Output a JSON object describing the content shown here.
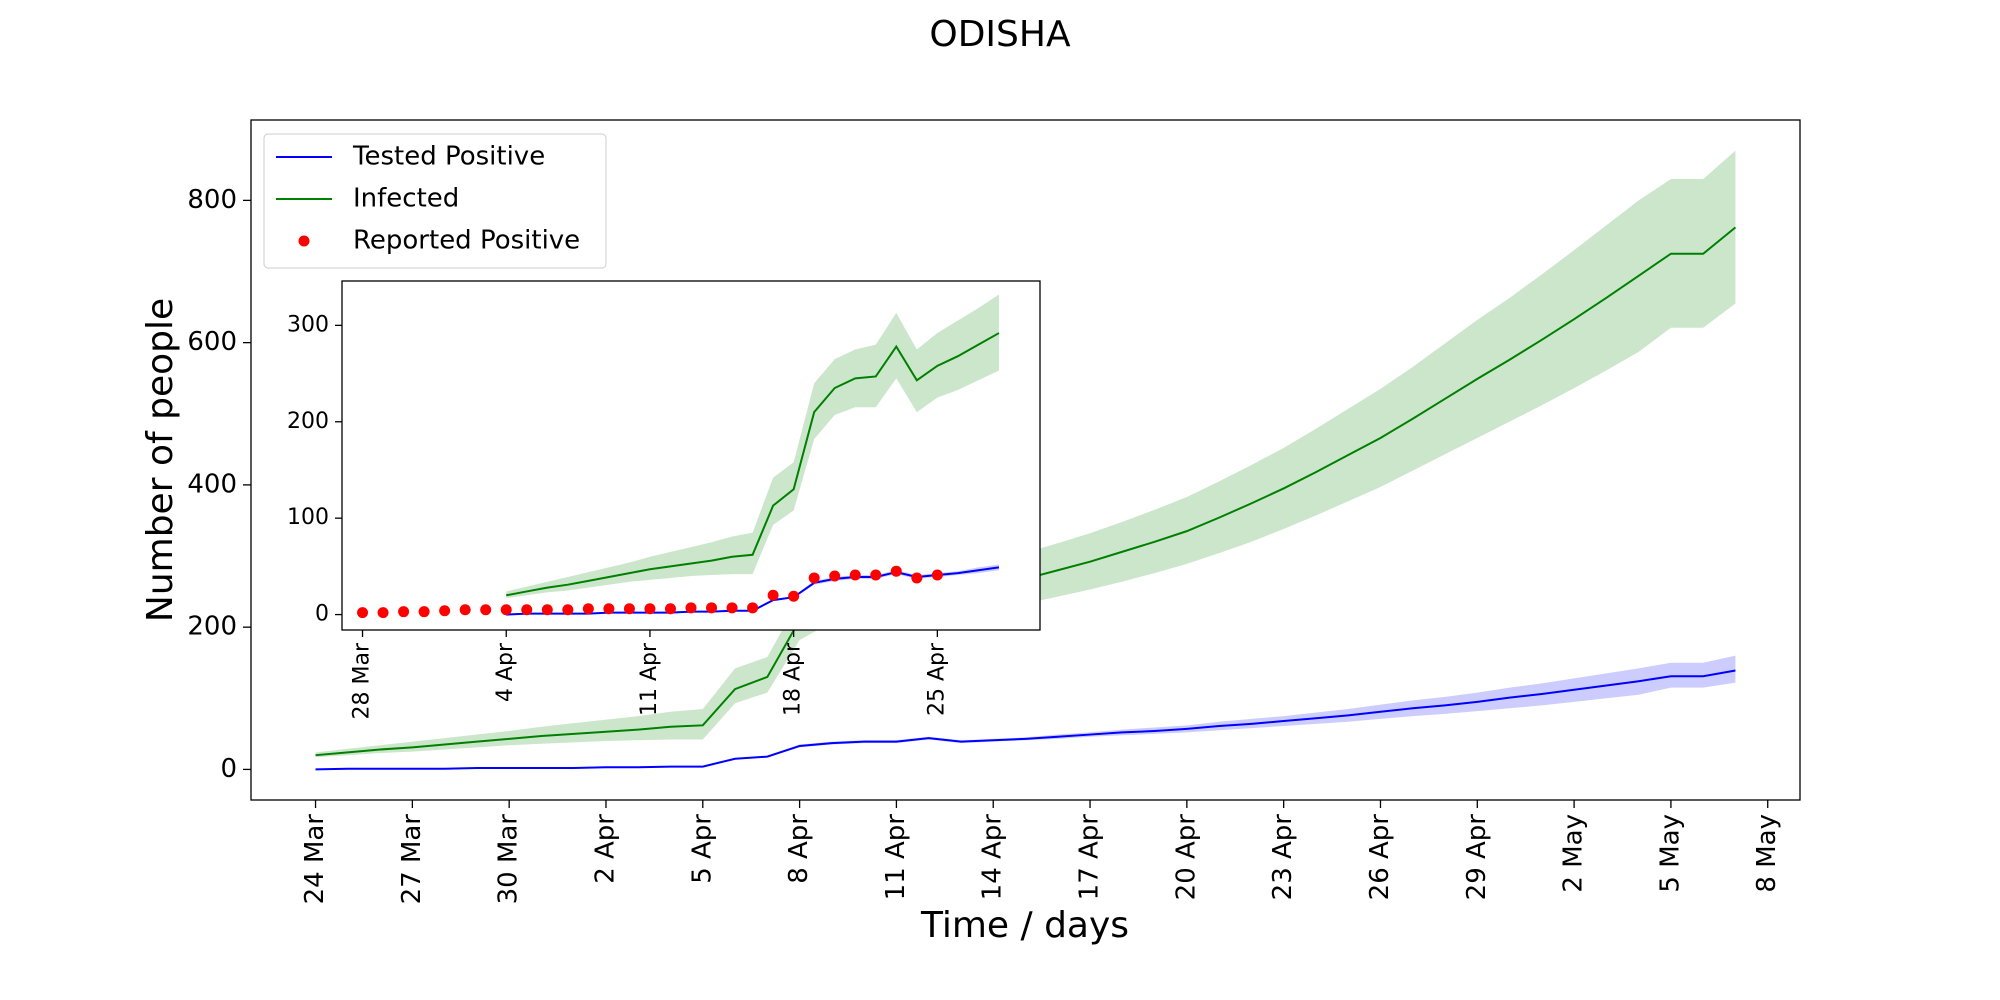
{
  "chart_data": [
    {
      "type": "line",
      "title": "ODISHA",
      "xlabel": "Time / days",
      "ylabel": "Number of people",
      "x": [
        "24 Mar",
        "25 Mar",
        "26 Mar",
        "27 Mar",
        "28 Mar",
        "29 Mar",
        "30 Mar",
        "31 Mar",
        "1 Apr",
        "2 Apr",
        "3 Apr",
        "4 Apr",
        "5 Apr",
        "6 Apr",
        "7 Apr",
        "8 Apr",
        "9 Apr",
        "10 Apr",
        "11 Apr",
        "12 Apr",
        "13 Apr",
        "14 Apr",
        "15 Apr",
        "16 Apr",
        "17 Apr",
        "18 Apr",
        "19 Apr",
        "20 Apr",
        "21 Apr",
        "22 Apr",
        "23 Apr",
        "24 Apr",
        "25 Apr",
        "26 Apr",
        "27 Apr",
        "28 Apr",
        "29 Apr",
        "30 Apr",
        "1 May",
        "2 May",
        "3 May",
        "4 May",
        "5 May",
        "6 May",
        "7 May"
      ],
      "xlim": [
        "22 Mar",
        "9 May"
      ],
      "xticks": [
        "24 Mar",
        "27 Mar",
        "30 Mar",
        "2 Apr",
        "5 Apr",
        "8 Apr",
        "11 Apr",
        "14 Apr",
        "17 Apr",
        "20 Apr",
        "23 Apr",
        "26 Apr",
        "29 Apr",
        "2 May",
        "5 May",
        "8 May"
      ],
      "ylim": [
        -43,
        913
      ],
      "yticks": [
        0,
        200,
        400,
        600,
        800
      ],
      "grid": false,
      "legend": {
        "loc": "upper left",
        "entries": [
          {
            "name": "Tested Positive",
            "color": "#0000ff",
            "marker": "line"
          },
          {
            "name": "Infected",
            "color": "#008000",
            "marker": "line"
          },
          {
            "name": "Reported Positive",
            "color": "#ff0000",
            "marker": "dot"
          }
        ]
      },
      "series": [
        {
          "color": "#0000ff",
          "band_color": "rgba(0,0,255,0.2)",
          "values": [
            0,
            1,
            1,
            1,
            1,
            2,
            2,
            2,
            2,
            3,
            3,
            4,
            4,
            15,
            18,
            33,
            37,
            39,
            39,
            44,
            39,
            41,
            43,
            46,
            49,
            52,
            54,
            57,
            61,
            64,
            68,
            72,
            76,
            81,
            86,
            90,
            95,
            101,
            106,
            112,
            118,
            124,
            131,
            131,
            139
          ],
          "lower": [
            0,
            1,
            1,
            1,
            1,
            2,
            2,
            2,
            2,
            3,
            3,
            4,
            4,
            14,
            17,
            31,
            35,
            37,
            37,
            42,
            37,
            39,
            41,
            43,
            46,
            48,
            50,
            52,
            55,
            58,
            61,
            64,
            67,
            71,
            75,
            78,
            82,
            86,
            90,
            95,
            100,
            105,
            115,
            115,
            122
          ],
          "upper": [
            0,
            1,
            1,
            1,
            1,
            2,
            2,
            2,
            2,
            3,
            3,
            4,
            4,
            16,
            19,
            35,
            39,
            41,
            41,
            46,
            41,
            43,
            45,
            49,
            52,
            56,
            59,
            62,
            67,
            71,
            75,
            80,
            85,
            91,
            97,
            102,
            108,
            115,
            121,
            128,
            135,
            142,
            150,
            150,
            160
          ]
        },
        {
          "color": "#008000",
          "band_color": "rgba(0,128,0,0.2)",
          "values": [
            20,
            24,
            28,
            31,
            35,
            39,
            43,
            47,
            50,
            53,
            56,
            60,
            62,
            113,
            130,
            210,
            235,
            245,
            247,
            278,
            243,
            258,
            268,
            280,
            292,
            306,
            320,
            335,
            354,
            374,
            395,
            418,
            442,
            466,
            493,
            521,
            549,
            576,
            604,
            633,
            663,
            694,
            725,
            725,
            762
          ],
          "lower": [
            17,
            20,
            23,
            25,
            28,
            31,
            34,
            36,
            38,
            40,
            41,
            42,
            42,
            93,
            108,
            182,
            207,
            215,
            215,
            245,
            210,
            225,
            233,
            243,
            253,
            264,
            276,
            289,
            304,
            320,
            338,
            357,
            377,
            397,
            420,
            443,
            466,
            489,
            512,
            536,
            561,
            587,
            621,
            621,
            655
          ],
          "upper": [
            24,
            29,
            34,
            39,
            44,
            49,
            54,
            60,
            65,
            70,
            75,
            81,
            85,
            142,
            158,
            240,
            265,
            275,
            280,
            313,
            275,
            292,
            305,
            318,
            332,
            348,
            365,
            383,
            405,
            428,
            452,
            479,
            507,
            535,
            566,
            599,
            632,
            663,
            696,
            730,
            765,
            800,
            830,
            830,
            870
          ]
        }
      ]
    },
    {
      "type": "line",
      "x": [
        "4 Apr",
        "5 Apr",
        "6 Apr",
        "7 Apr",
        "8 Apr",
        "9 Apr",
        "10 Apr",
        "11 Apr",
        "12 Apr",
        "13 Apr",
        "14 Apr",
        "15 Apr",
        "16 Apr",
        "17 Apr",
        "18 Apr",
        "19 Apr",
        "20 Apr",
        "21 Apr",
        "22 Apr",
        "23 Apr",
        "24 Apr",
        "25 Apr",
        "26 Apr",
        "27 Apr",
        "28 Apr"
      ],
      "xlim": [
        "27 Mar",
        "30 Apr"
      ],
      "xticks": [
        "28 Mar",
        "4 Apr",
        "11 Apr",
        "18 Apr",
        "25 Apr"
      ],
      "ylim": [
        -16,
        346
      ],
      "yticks": [
        0,
        100,
        200,
        300
      ],
      "grid": false,
      "series": [
        {
          "color": "#0000ff",
          "band_color": "rgba(0,0,255,0.2)",
          "values": [
            0,
            1,
            1,
            1,
            1,
            2,
            2,
            2,
            2,
            3,
            3,
            4,
            4,
            15,
            18,
            33,
            37,
            39,
            39,
            44,
            39,
            41,
            43,
            46,
            49
          ],
          "lower": [
            0,
            1,
            1,
            1,
            1,
            2,
            2,
            2,
            2,
            3,
            3,
            4,
            4,
            14,
            17,
            31,
            35,
            37,
            37,
            42,
            37,
            39,
            41,
            43,
            46
          ],
          "upper": [
            0,
            1,
            1,
            1,
            1,
            2,
            2,
            2,
            2,
            3,
            3,
            4,
            4,
            16,
            19,
            35,
            39,
            41,
            41,
            46,
            41,
            43,
            45,
            49,
            52
          ]
        },
        {
          "color": "#008000",
          "band_color": "rgba(0,128,0,0.2)",
          "values": [
            20,
            24,
            28,
            31,
            35,
            39,
            43,
            47,
            50,
            53,
            56,
            60,
            62,
            113,
            130,
            210,
            235,
            245,
            247,
            278,
            243,
            258,
            268,
            280,
            292
          ],
          "lower": [
            17,
            20,
            23,
            25,
            28,
            31,
            34,
            36,
            38,
            40,
            41,
            42,
            42,
            93,
            108,
            182,
            207,
            215,
            215,
            245,
            210,
            225,
            233,
            243,
            253
          ],
          "upper": [
            24,
            29,
            34,
            39,
            44,
            49,
            54,
            60,
            65,
            70,
            75,
            81,
            85,
            142,
            158,
            240,
            265,
            275,
            280,
            313,
            275,
            292,
            305,
            318,
            332
          ]
        },
        {
          "type": "scatter",
          "color": "#ff0000",
          "x": [
            "28 Mar",
            "29 Mar",
            "30 Mar",
            "31 Mar",
            "1 Apr",
            "2 Apr",
            "3 Apr",
            "4 Apr",
            "5 Apr",
            "6 Apr",
            "7 Apr",
            "8 Apr",
            "9 Apr",
            "10 Apr",
            "11 Apr",
            "12 Apr",
            "13 Apr",
            "14 Apr",
            "15 Apr",
            "16 Apr",
            "17 Apr",
            "18 Apr",
            "19 Apr",
            "20 Apr",
            "21 Apr",
            "22 Apr",
            "23 Apr",
            "24 Apr",
            "25 Apr"
          ],
          "values": [
            2,
            2,
            3,
            3,
            4,
            5,
            5,
            5,
            5,
            5,
            5,
            6,
            6,
            6,
            6,
            6,
            7,
            7,
            7,
            7,
            20,
            19,
            38,
            40,
            41,
            41,
            45,
            38,
            41
          ]
        }
      ]
    }
  ]
}
